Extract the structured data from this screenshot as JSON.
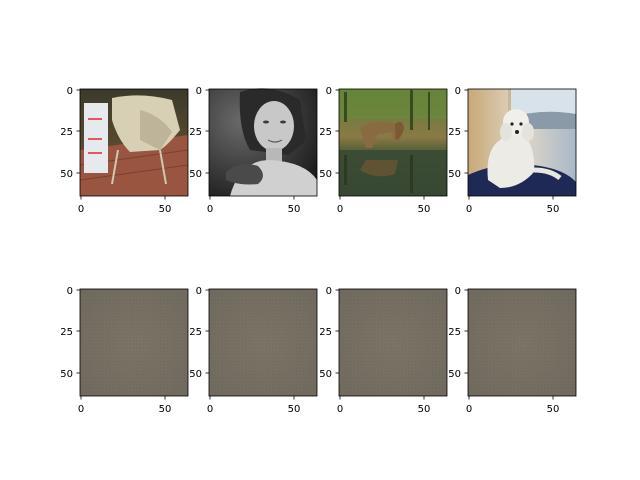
{
  "figure": {
    "axes": [
      {
        "content": "image of a white cloth draped over a chair on a wooden deck",
        "x_ticks": [
          "0",
          "50"
        ],
        "y_ticks": [
          "0",
          "25",
          "50"
        ]
      },
      {
        "content": "grayscale image of a young woman with a small animal on her shoulder",
        "x_ticks": [
          "0",
          "50"
        ],
        "y_ticks": [
          "0",
          "25",
          "50"
        ]
      },
      {
        "content": "image of a deer drinking at a pond with reflections",
        "x_ticks": [
          "0",
          "50"
        ],
        "y_ticks": [
          "0",
          "25",
          "50"
        ]
      },
      {
        "content": "image of a white poodle sitting on a blue cushion by a window",
        "x_ticks": [
          "0",
          "50"
        ],
        "y_ticks": [
          "0",
          "25",
          "50"
        ]
      },
      {
        "content": "blurry uniform gray-brown reconstruction",
        "x_ticks": [
          "0",
          "50"
        ],
        "y_ticks": [
          "0",
          "25",
          "50"
        ]
      },
      {
        "content": "blurry uniform gray-brown reconstruction",
        "x_ticks": [
          "0",
          "50"
        ],
        "y_ticks": [
          "0",
          "25",
          "50"
        ]
      },
      {
        "content": "blurry uniform gray-brown reconstruction",
        "x_ticks": [
          "0",
          "50"
        ],
        "y_ticks": [
          "0",
          "25",
          "50"
        ]
      },
      {
        "content": "blurry uniform gray-brown reconstruction",
        "x_ticks": [
          "0",
          "50"
        ],
        "y_ticks": [
          "0",
          "25",
          "50"
        ]
      }
    ],
    "colors": {
      "recon_fill": "#7d7467",
      "axes_edge": "#000000"
    }
  }
}
